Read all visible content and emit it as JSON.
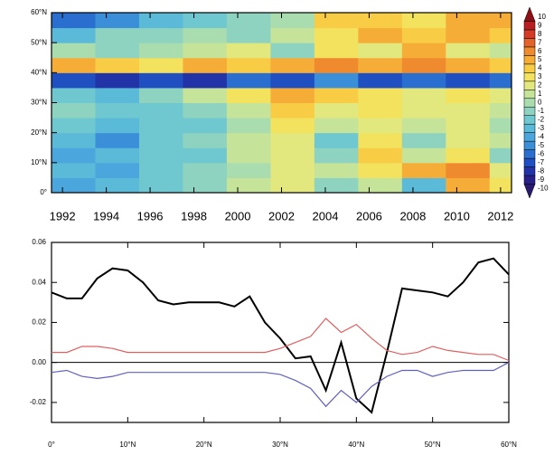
{
  "chart_data": [
    {
      "type": "heatmap",
      "x_bins": [
        1991.5,
        1993.5,
        1995.5,
        1997.5,
        1999.5,
        2001.5,
        2003.5,
        2005.5,
        2007.5,
        2009.5,
        2011.5,
        2012.5
      ],
      "y_bins": [
        0,
        5,
        10,
        15,
        20,
        25,
        30,
        35,
        40,
        45,
        50,
        55,
        60
      ],
      "values": [
        [
          -4,
          -3,
          -2,
          -1,
          1,
          2,
          -1,
          1,
          -3,
          5,
          3
        ],
        [
          -3,
          -4,
          -2,
          -1,
          0,
          2,
          1,
          3,
          5,
          6,
          2
        ],
        [
          -4,
          -3,
          -2,
          -2,
          1,
          2,
          -1,
          4,
          1,
          3,
          -1
        ],
        [
          -3,
          -5,
          -2,
          -1,
          1,
          2,
          -2,
          3,
          -1,
          2,
          1
        ],
        [
          -2,
          -3,
          -2,
          -2,
          0,
          3,
          1,
          2,
          1,
          2,
          0
        ],
        [
          -1,
          -2,
          -2,
          -1,
          1,
          4,
          2,
          3,
          2,
          2,
          1
        ],
        [
          -2,
          -3,
          -1,
          1,
          3,
          5,
          4,
          3,
          2,
          3,
          2
        ],
        [
          -7,
          -8,
          -7,
          -8,
          -6,
          -7,
          -5,
          -7,
          -6,
          -7,
          -6
        ],
        [
          5,
          4,
          3,
          5,
          4,
          5,
          6,
          5,
          6,
          5,
          4
        ],
        [
          0,
          -1,
          0,
          1,
          2,
          -1,
          3,
          2,
          5,
          2,
          1
        ],
        [
          -3,
          -1,
          -1,
          0,
          -1,
          1,
          3,
          5,
          4,
          5,
          4
        ],
        [
          -6,
          -5,
          -3,
          -2,
          -1,
          0,
          4,
          4,
          3,
          5,
          5
        ]
      ],
      "xlim": [
        1991.5,
        2012.5
      ],
      "xticks": [
        1992,
        1994,
        1996,
        1998,
        2000,
        2002,
        2004,
        2006,
        2008,
        2010,
        2012
      ],
      "ylim": [
        0,
        60
      ],
      "yticks": [
        {
          "value": 0,
          "label": "0°"
        },
        {
          "value": 10,
          "label": "10°N"
        },
        {
          "value": 20,
          "label": "20°N"
        },
        {
          "value": 30,
          "label": "30°N"
        },
        {
          "value": 40,
          "label": "40°N"
        },
        {
          "value": 50,
          "label": "50°N"
        },
        {
          "value": 60,
          "label": "60°N"
        }
      ],
      "levels": [
        -10,
        -9,
        -8,
        -7,
        -6,
        -5,
        -4,
        -3,
        -2,
        -1,
        0,
        1,
        2,
        3,
        4,
        5,
        6,
        7,
        8,
        9,
        10
      ],
      "colors": [
        "#2a1a6e",
        "#28208a",
        "#2233a8",
        "#1f4fc0",
        "#2a6fd0",
        "#3b8fd9",
        "#4aa6dc",
        "#5bbad8",
        "#6fc8d0",
        "#8ed3c0",
        "#a9dcae",
        "#c6e39a",
        "#e2e77e",
        "#f3e25e",
        "#f8cc45",
        "#f6ad38",
        "#ef8a2e",
        "#e4632a",
        "#d33b27",
        "#b81f22",
        "#8e1016"
      ]
    },
    {
      "type": "line",
      "x": [
        0,
        2,
        4,
        6,
        8,
        10,
        12,
        14,
        16,
        18,
        20,
        22,
        24,
        26,
        28,
        30,
        32,
        34,
        36,
        38,
        40,
        42,
        44,
        46,
        48,
        50,
        52,
        54,
        56,
        58,
        60
      ],
      "series": [
        {
          "color": "#000000",
          "values": [
            0.035,
            0.032,
            0.032,
            0.042,
            0.047,
            0.046,
            0.04,
            0.031,
            0.029,
            0.03,
            0.03,
            0.03,
            0.028,
            0.033,
            0.02,
            0.012,
            0.002,
            0.003,
            -0.014,
            0.01,
            -0.018,
            -0.025,
            0.005,
            0.037,
            0.036,
            0.035,
            0.033,
            0.04,
            0.05,
            0.052,
            0.044
          ]
        },
        {
          "color": "#e06060",
          "values": [
            0.005,
            0.005,
            0.008,
            0.008,
            0.007,
            0.005,
            0.005,
            0.005,
            0.005,
            0.005,
            0.005,
            0.005,
            0.005,
            0.005,
            0.005,
            0.007,
            0.01,
            0.013,
            0.022,
            0.015,
            0.019,
            0.012,
            0.006,
            0.004,
            0.005,
            0.008,
            0.006,
            0.005,
            0.004,
            0.004,
            0.001
          ]
        },
        {
          "color": "#6060c0",
          "values": [
            -0.005,
            -0.004,
            -0.007,
            -0.008,
            -0.007,
            -0.005,
            -0.005,
            -0.005,
            -0.005,
            -0.005,
            -0.005,
            -0.005,
            -0.005,
            -0.005,
            -0.005,
            -0.006,
            -0.009,
            -0.013,
            -0.022,
            -0.014,
            -0.02,
            -0.012,
            -0.007,
            -0.004,
            -0.004,
            -0.007,
            -0.005,
            -0.004,
            -0.004,
            -0.004,
            0
          ]
        }
      ],
      "xlim": [
        0,
        60
      ],
      "xticks": [
        {
          "value": 0,
          "label": "0°"
        },
        {
          "value": 10,
          "label": "10°N"
        },
        {
          "value": 20,
          "label": "20°N"
        },
        {
          "value": 30,
          "label": "30°N"
        },
        {
          "value": 40,
          "label": "40°N"
        },
        {
          "value": 50,
          "label": "50°N"
        },
        {
          "value": 60,
          "label": "60°N"
        }
      ],
      "ylim": [
        -0.03,
        0.06
      ],
      "yticks": [
        -0.02,
        {
          "value": 0,
          "label": "0.00"
        },
        0.02,
        0.04,
        0.06
      ]
    }
  ]
}
